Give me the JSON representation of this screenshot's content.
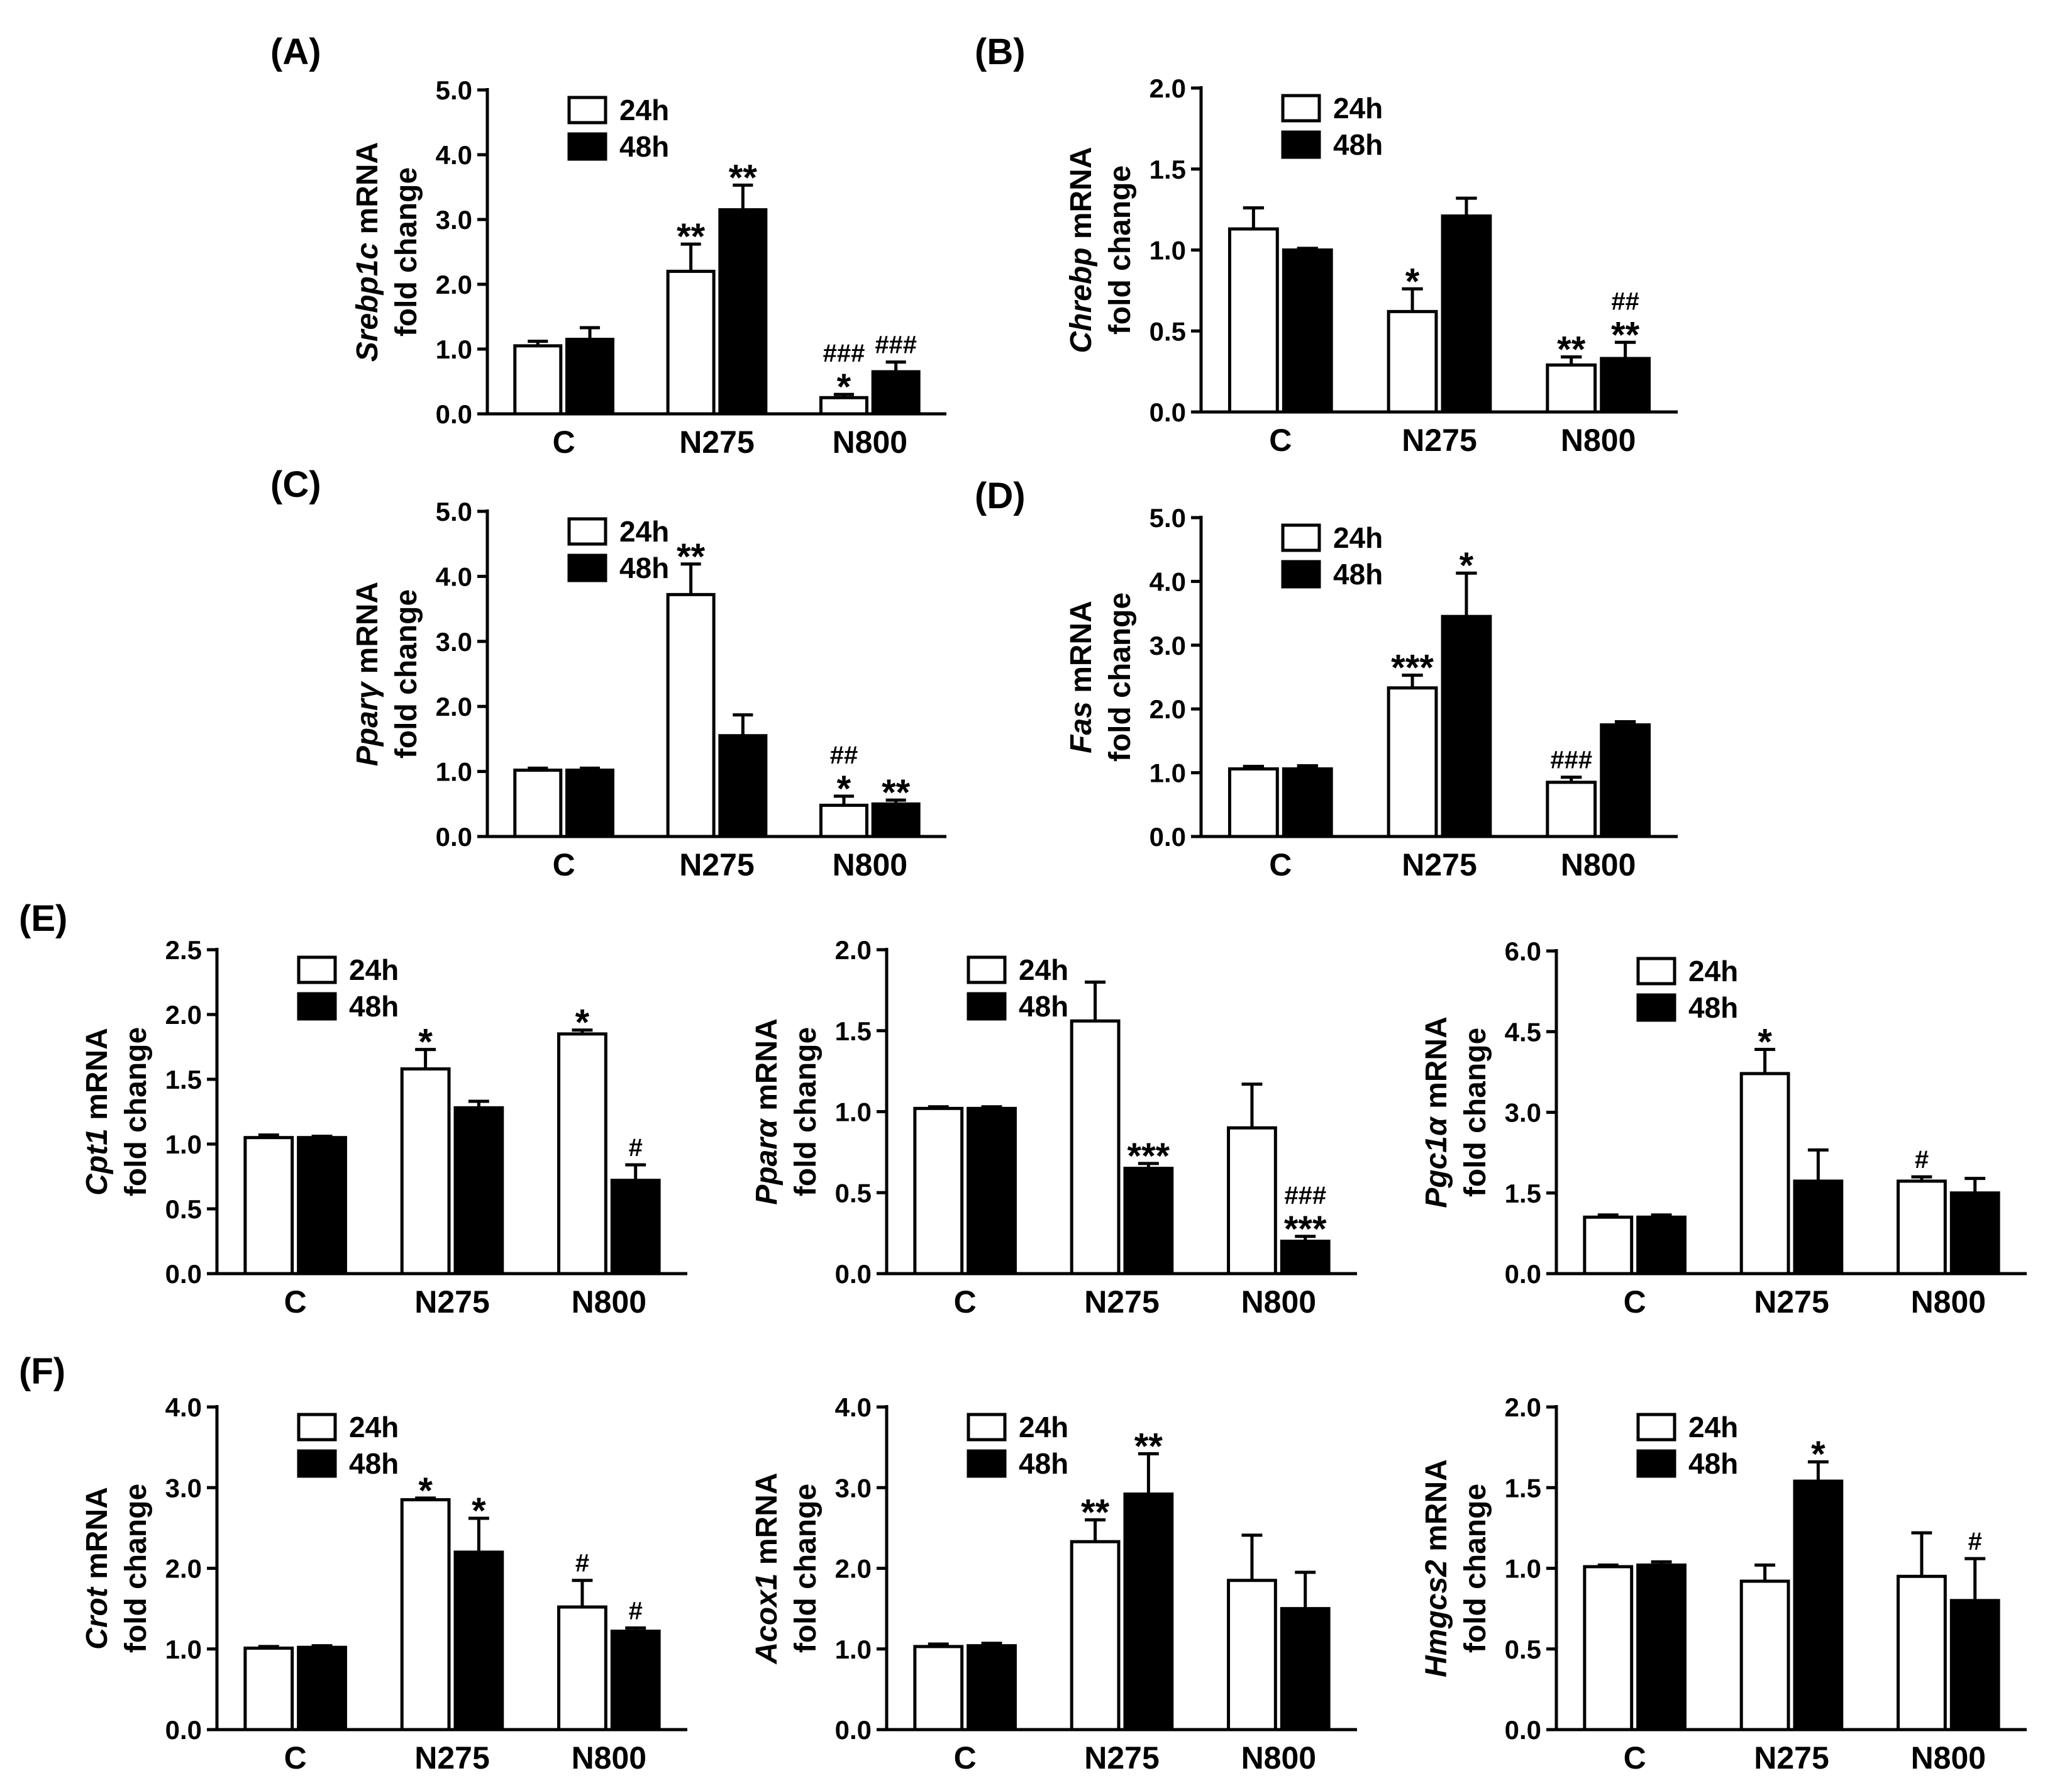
{
  "figure": {
    "section_labels": {
      "E": "(E)",
      "F": "(F)"
    }
  },
  "chart_data": [
    {
      "id": "A",
      "panel_label": "(A)",
      "type": "bar",
      "ylabel_gene": "Srebp1c",
      "ylabel_suffix": " mRNA",
      "ylabel_line2": "fold change",
      "categories": [
        "C",
        "N275",
        "N800"
      ],
      "legend": [
        "24h",
        "48h"
      ],
      "yticks": [
        "0.0",
        "1.0",
        "2.0",
        "3.0",
        "4.0",
        "5.0"
      ],
      "ylim": [
        0,
        5
      ],
      "series": [
        {
          "name": "24h",
          "values": [
            1.05,
            2.2,
            0.25
          ],
          "errors": [
            0.07,
            0.42,
            0.05
          ],
          "annotations": [
            [],
            [
              "**"
            ],
            [
              "*",
              "###"
            ]
          ]
        },
        {
          "name": "48h",
          "values": [
            1.15,
            3.15,
            0.65
          ],
          "errors": [
            0.18,
            0.38,
            0.15
          ],
          "annotations": [
            [],
            [
              "**"
            ],
            [
              "###"
            ]
          ]
        }
      ]
    },
    {
      "id": "B",
      "panel_label": "(B)",
      "type": "bar",
      "ylabel_gene": "Chrebp",
      "ylabel_suffix": " mRNA",
      "ylabel_line2": "fold change",
      "categories": [
        "C",
        "N275",
        "N800"
      ],
      "legend": [
        "24h",
        "48h"
      ],
      "yticks": [
        "0.0",
        "0.5",
        "1.0",
        "1.5",
        "2.0"
      ],
      "ylim": [
        0,
        2
      ],
      "series": [
        {
          "name": "24h",
          "values": [
            1.13,
            0.62,
            0.29
          ],
          "errors": [
            0.13,
            0.14,
            0.05
          ],
          "annotations": [
            [],
            [
              "*"
            ],
            [
              "**"
            ]
          ]
        },
        {
          "name": "48h",
          "values": [
            1.0,
            1.21,
            0.33
          ],
          "errors": [
            0.01,
            0.11,
            0.1
          ],
          "annotations": [
            [],
            [],
            [
              "**",
              "##"
            ]
          ]
        }
      ]
    },
    {
      "id": "C",
      "panel_label": "(C)",
      "type": "bar",
      "ylabel_gene": "Pparγ",
      "ylabel_suffix": " mRNA",
      "ylabel_line2": "fold change",
      "categories": [
        "C",
        "N275",
        "N800"
      ],
      "legend": [
        "24h",
        "48h"
      ],
      "yticks": [
        "0.0",
        "1.0",
        "2.0",
        "3.0",
        "4.0",
        "5.0"
      ],
      "ylim": [
        0,
        5
      ],
      "series": [
        {
          "name": "24h",
          "values": [
            1.02,
            3.72,
            0.48
          ],
          "errors": [
            0.03,
            0.47,
            0.14
          ],
          "annotations": [
            [],
            [
              "**"
            ],
            [
              "*",
              "##"
            ]
          ]
        },
        {
          "name": "48h",
          "values": [
            1.02,
            1.55,
            0.5
          ],
          "errors": [
            0.03,
            0.32,
            0.06
          ],
          "annotations": [
            [],
            [],
            [
              "**"
            ]
          ]
        }
      ]
    },
    {
      "id": "D",
      "panel_label": "(D)",
      "type": "bar",
      "ylabel_gene": "Fas",
      "ylabel_suffix": " mRNA",
      "ylabel_line2": "fold change",
      "categories": [
        "C",
        "N275",
        "N800"
      ],
      "legend": [
        "24h",
        "48h"
      ],
      "yticks": [
        "0.0",
        "1.0",
        "2.0",
        "3.0",
        "4.0",
        "5.0"
      ],
      "ylim": [
        0,
        5
      ],
      "series": [
        {
          "name": "24h",
          "values": [
            1.06,
            2.33,
            0.85
          ],
          "errors": [
            0.04,
            0.2,
            0.08
          ],
          "annotations": [
            [],
            [
              "***"
            ],
            [
              "###"
            ]
          ]
        },
        {
          "name": "48h",
          "values": [
            1.06,
            3.45,
            1.75
          ],
          "errors": [
            0.05,
            0.68,
            0.05
          ],
          "annotations": [
            [],
            [
              "*"
            ],
            []
          ]
        }
      ]
    },
    {
      "id": "E1",
      "panel_label": "",
      "type": "bar",
      "ylabel_gene": "Cpt1",
      "ylabel_suffix": " mRNA",
      "ylabel_line2": "fold change",
      "categories": [
        "C",
        "N275",
        "N800"
      ],
      "legend": [
        "24h",
        "48h"
      ],
      "yticks": [
        "0.0",
        "0.5",
        "1.0",
        "1.5",
        "2.0",
        "2.5"
      ],
      "ylim": [
        0,
        2.5
      ],
      "series": [
        {
          "name": "24h",
          "values": [
            1.05,
            1.58,
            1.85
          ],
          "errors": [
            0.02,
            0.15,
            0.03
          ],
          "annotations": [
            [],
            [
              "*"
            ],
            [
              "*"
            ]
          ]
        },
        {
          "name": "48h",
          "values": [
            1.05,
            1.28,
            0.72
          ],
          "errors": [
            0.01,
            0.05,
            0.12
          ],
          "annotations": [
            [],
            [],
            [
              "#"
            ]
          ]
        }
      ]
    },
    {
      "id": "E2",
      "panel_label": "",
      "type": "bar",
      "ylabel_gene": "Pparα",
      "ylabel_suffix": " mRNA",
      "ylabel_line2": "fold change",
      "categories": [
        "C",
        "N275",
        "N800"
      ],
      "legend": [
        "24h",
        "48h"
      ],
      "yticks": [
        "0.0",
        "0.5",
        "1.0",
        "1.5",
        "2.0"
      ],
      "ylim": [
        0,
        2
      ],
      "series": [
        {
          "name": "24h",
          "values": [
            1.02,
            1.56,
            0.9
          ],
          "errors": [
            0.01,
            0.24,
            0.27
          ],
          "annotations": [
            [],
            [],
            []
          ]
        },
        {
          "name": "48h",
          "values": [
            1.02,
            0.65,
            0.2
          ],
          "errors": [
            0.01,
            0.03,
            0.03
          ],
          "annotations": [
            [],
            [
              "***"
            ],
            [
              "***",
              "###"
            ]
          ]
        }
      ]
    },
    {
      "id": "E3",
      "panel_label": "",
      "type": "bar",
      "ylabel_gene": "Pgc1α",
      "ylabel_suffix": " mRNA",
      "ylabel_line2": "fold change",
      "categories": [
        "C",
        "N275",
        "N800"
      ],
      "legend": [
        "24h",
        "48h"
      ],
      "yticks": [
        "0.0",
        "1.5",
        "3.0",
        "4.5",
        "6.0"
      ],
      "ylim": [
        0,
        6
      ],
      "series": [
        {
          "name": "24h",
          "values": [
            1.05,
            3.72,
            1.72
          ],
          "errors": [
            0.04,
            0.45,
            0.08
          ],
          "annotations": [
            [],
            [
              "*"
            ],
            [
              "#"
            ]
          ]
        },
        {
          "name": "48h",
          "values": [
            1.05,
            1.72,
            1.5
          ],
          "errors": [
            0.04,
            0.58,
            0.27
          ],
          "annotations": [
            [],
            [],
            []
          ]
        }
      ]
    },
    {
      "id": "F1",
      "panel_label": "",
      "type": "bar",
      "ylabel_gene": "Crot",
      "ylabel_suffix": " mRNA",
      "ylabel_line2": "fold change",
      "categories": [
        "C",
        "N275",
        "N800"
      ],
      "legend": [
        "24h",
        "48h"
      ],
      "yticks": [
        "0.0",
        "1.0",
        "2.0",
        "3.0",
        "4.0"
      ],
      "ylim": [
        0,
        4
      ],
      "series": [
        {
          "name": "24h",
          "values": [
            1.01,
            2.85,
            1.52
          ],
          "errors": [
            0.02,
            0.02,
            0.33
          ],
          "annotations": [
            [],
            [
              "*"
            ],
            [
              "#"
            ]
          ]
        },
        {
          "name": "48h",
          "values": [
            1.02,
            2.2,
            1.22
          ],
          "errors": [
            0.02,
            0.42,
            0.04
          ],
          "annotations": [
            [],
            [
              "*"
            ],
            [
              "#"
            ]
          ]
        }
      ]
    },
    {
      "id": "F2",
      "panel_label": "",
      "type": "bar",
      "ylabel_gene": "Acox1",
      "ylabel_suffix": " mRNA",
      "ylabel_line2": "fold change",
      "categories": [
        "C",
        "N275",
        "N800"
      ],
      "legend": [
        "24h",
        "48h"
      ],
      "yticks": [
        "0.0",
        "1.0",
        "2.0",
        "3.0",
        "4.0"
      ],
      "ylim": [
        0,
        4
      ],
      "series": [
        {
          "name": "24h",
          "values": [
            1.03,
            2.33,
            1.85
          ],
          "errors": [
            0.03,
            0.27,
            0.56
          ],
          "annotations": [
            [],
            [
              "**"
            ],
            []
          ]
        },
        {
          "name": "48h",
          "values": [
            1.04,
            2.92,
            1.5
          ],
          "errors": [
            0.03,
            0.5,
            0.45
          ],
          "annotations": [
            [],
            [
              "**"
            ],
            []
          ]
        }
      ]
    },
    {
      "id": "F3",
      "panel_label": "",
      "type": "bar",
      "ylabel_gene": "Hmgcs2",
      "ylabel_suffix": " mRNA",
      "ylabel_line2": "fold change",
      "categories": [
        "C",
        "N275",
        "N800"
      ],
      "legend": [
        "24h",
        "48h"
      ],
      "yticks": [
        "0.0",
        "0.5",
        "1.0",
        "1.5",
        "2.0"
      ],
      "ylim": [
        0,
        2
      ],
      "series": [
        {
          "name": "24h",
          "values": [
            1.01,
            0.92,
            0.95
          ],
          "errors": [
            0.01,
            0.1,
            0.27
          ],
          "annotations": [
            [],
            [],
            []
          ]
        },
        {
          "name": "48h",
          "values": [
            1.02,
            1.54,
            0.8
          ],
          "errors": [
            0.02,
            0.12,
            0.26
          ],
          "annotations": [
            [],
            [
              "*"
            ],
            [
              "#"
            ]
          ]
        }
      ]
    }
  ]
}
